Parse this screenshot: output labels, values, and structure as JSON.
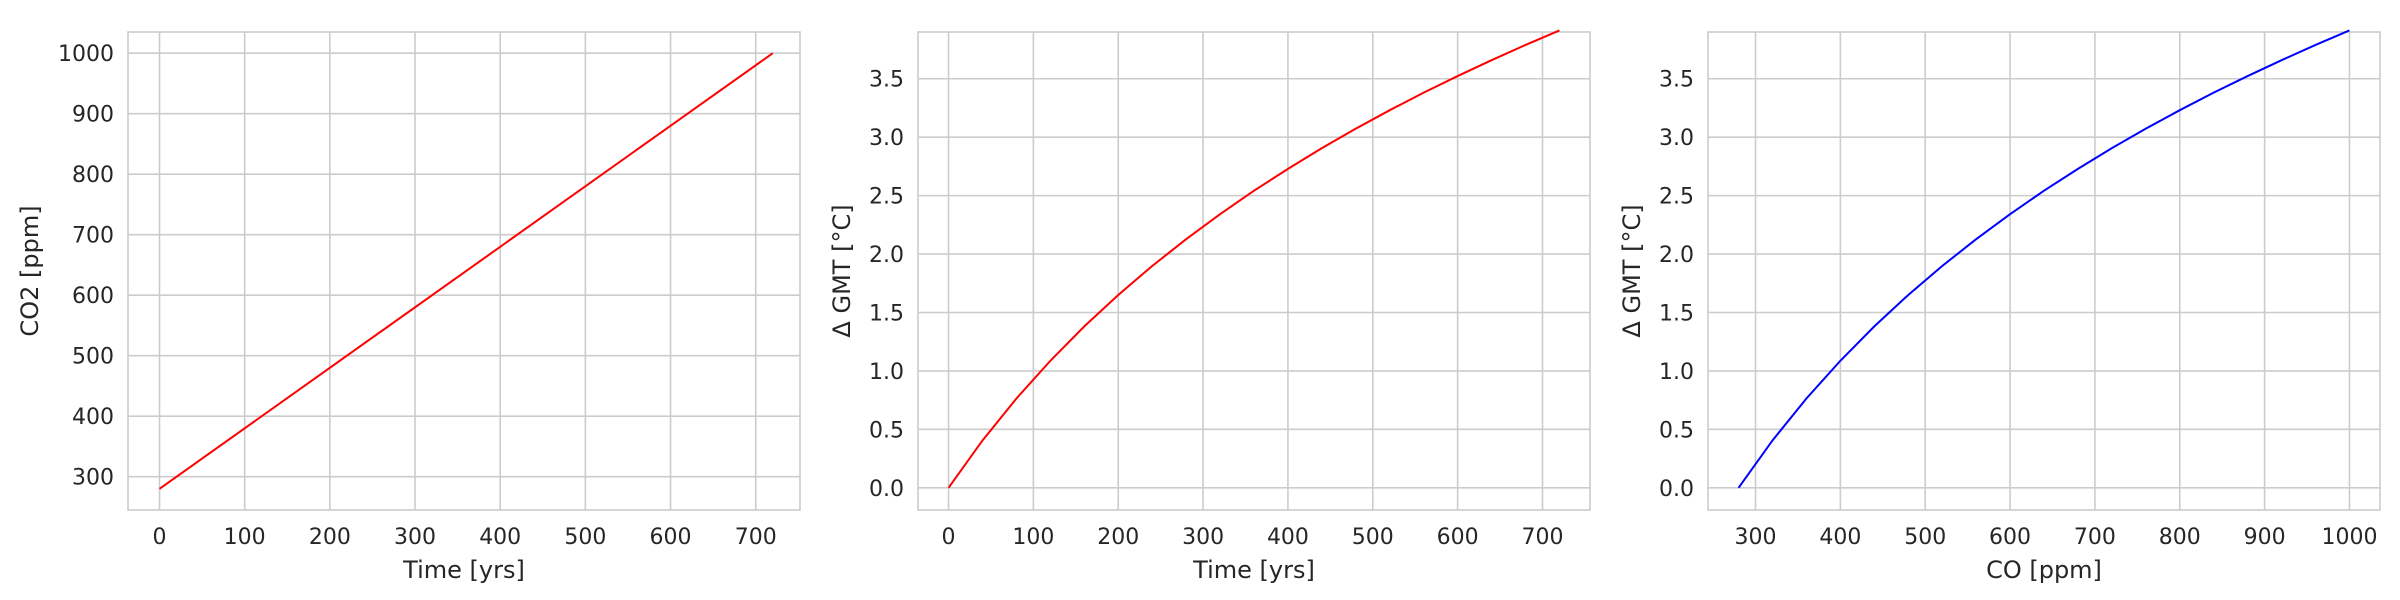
{
  "chart_data": [
    {
      "type": "line",
      "xlabel": "Time [yrs]",
      "ylabel": "CO2 [ppm]",
      "xlim": [
        -37,
        752
      ],
      "ylim": [
        245,
        1035
      ],
      "xticks": [
        0,
        100,
        200,
        300,
        400,
        500,
        600,
        700
      ],
      "yticks": [
        300,
        400,
        500,
        600,
        700,
        800,
        900,
        1000
      ],
      "tick_format": "int",
      "grid": true,
      "color": "#ff0000",
      "series": [
        {
          "x": [
            0,
            720
          ],
          "y": [
            280,
            1000
          ]
        }
      ]
    },
    {
      "type": "line",
      "xlabel": "Time [yrs]",
      "ylabel": "Δ GMT [°C]",
      "xlim": [
        -36,
        756
      ],
      "ylim": [
        -0.19,
        3.9
      ],
      "xticks": [
        0,
        100,
        200,
        300,
        400,
        500,
        600,
        700
      ],
      "yticks": [
        0.0,
        0.5,
        1.0,
        1.5,
        2.0,
        2.5,
        3.0,
        3.5
      ],
      "tick_format": "one_decimal",
      "grid": true,
      "color": "#ff0000",
      "series": [
        {
          "x": [
            0,
            40,
            80,
            120,
            160,
            200,
            240,
            280,
            320,
            360,
            400,
            440,
            480,
            520,
            560,
            600,
            640,
            680,
            720
          ],
          "y": [
            0.0,
            0.405,
            0.764,
            1.087,
            1.381,
            1.65,
            1.898,
            2.127,
            2.341,
            2.542,
            2.729,
            2.906,
            3.073,
            3.231,
            3.381,
            3.523,
            3.659,
            3.789,
            3.913
          ]
        }
      ]
    },
    {
      "type": "line",
      "xlabel": "CO [ppm]",
      "ylabel": "Δ GMT [°C]",
      "xlim": [
        244,
        1036
      ],
      "ylim": [
        -0.19,
        3.9
      ],
      "xticks": [
        300,
        400,
        500,
        600,
        700,
        800,
        900,
        1000
      ],
      "yticks": [
        0.0,
        0.5,
        1.0,
        1.5,
        2.0,
        2.5,
        3.0,
        3.5
      ],
      "tick_format": "one_decimal",
      "grid": true,
      "color": "#0000ff",
      "series": [
        {
          "x": [
            280,
            320,
            360,
            400,
            440,
            480,
            520,
            560,
            600,
            640,
            680,
            720,
            760,
            800,
            840,
            880,
            920,
            960,
            1000
          ],
          "y": [
            0.0,
            0.405,
            0.764,
            1.087,
            1.381,
            1.65,
            1.898,
            2.127,
            2.341,
            2.542,
            2.729,
            2.906,
            3.073,
            3.231,
            3.381,
            3.523,
            3.659,
            3.789,
            3.913
          ]
        }
      ]
    }
  ]
}
